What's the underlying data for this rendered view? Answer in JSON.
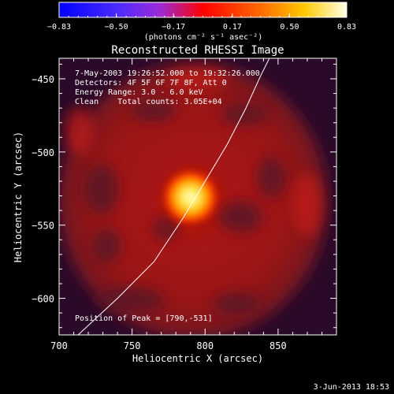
{
  "colorbar": {
    "ticks": [
      "-0.83",
      "-0.50",
      "-0.17",
      "0.17",
      "0.50",
      "0.83"
    ],
    "min": -0.83,
    "max": 0.83,
    "units": "(photons cm⁻² s⁻¹ asec⁻²)"
  },
  "chart_data": {
    "type": "heatmap",
    "title": "Reconstructed RHESSI Image",
    "xlabel": "Heliocentric X (arcsec)",
    "ylabel": "Heliocentric Y (arcsec)",
    "xlim": [
      700,
      890
    ],
    "ylim": [
      -625,
      -436
    ],
    "xticks": [
      700,
      750,
      800,
      850
    ],
    "yticks": [
      -450,
      -500,
      -550,
      -600
    ],
    "annotations": [
      "7-May-2003 19:26:52.000 to 19:32:26.000",
      "Detectors: 4F 5F 6F 7F 8F, Att 0",
      "Energy Range: 3.0 - 6.0 keV",
      "Clean    Total counts: 3.05E+04"
    ],
    "peak_label": "Position of Peak = [790,-531]",
    "peak": [
      790,
      -531
    ],
    "limb_curve": [
      [
        713,
        -625
      ],
      [
        740,
        -600
      ],
      [
        765,
        -575
      ],
      [
        785,
        -545
      ],
      [
        800,
        -520
      ],
      [
        815,
        -495
      ],
      [
        828,
        -470
      ],
      [
        838,
        -448
      ],
      [
        844,
        -436
      ]
    ]
  },
  "footer": {
    "date": "3-Jun-2013 18:53"
  },
  "colors": {
    "background": "#000000",
    "text": "#ffffff"
  }
}
